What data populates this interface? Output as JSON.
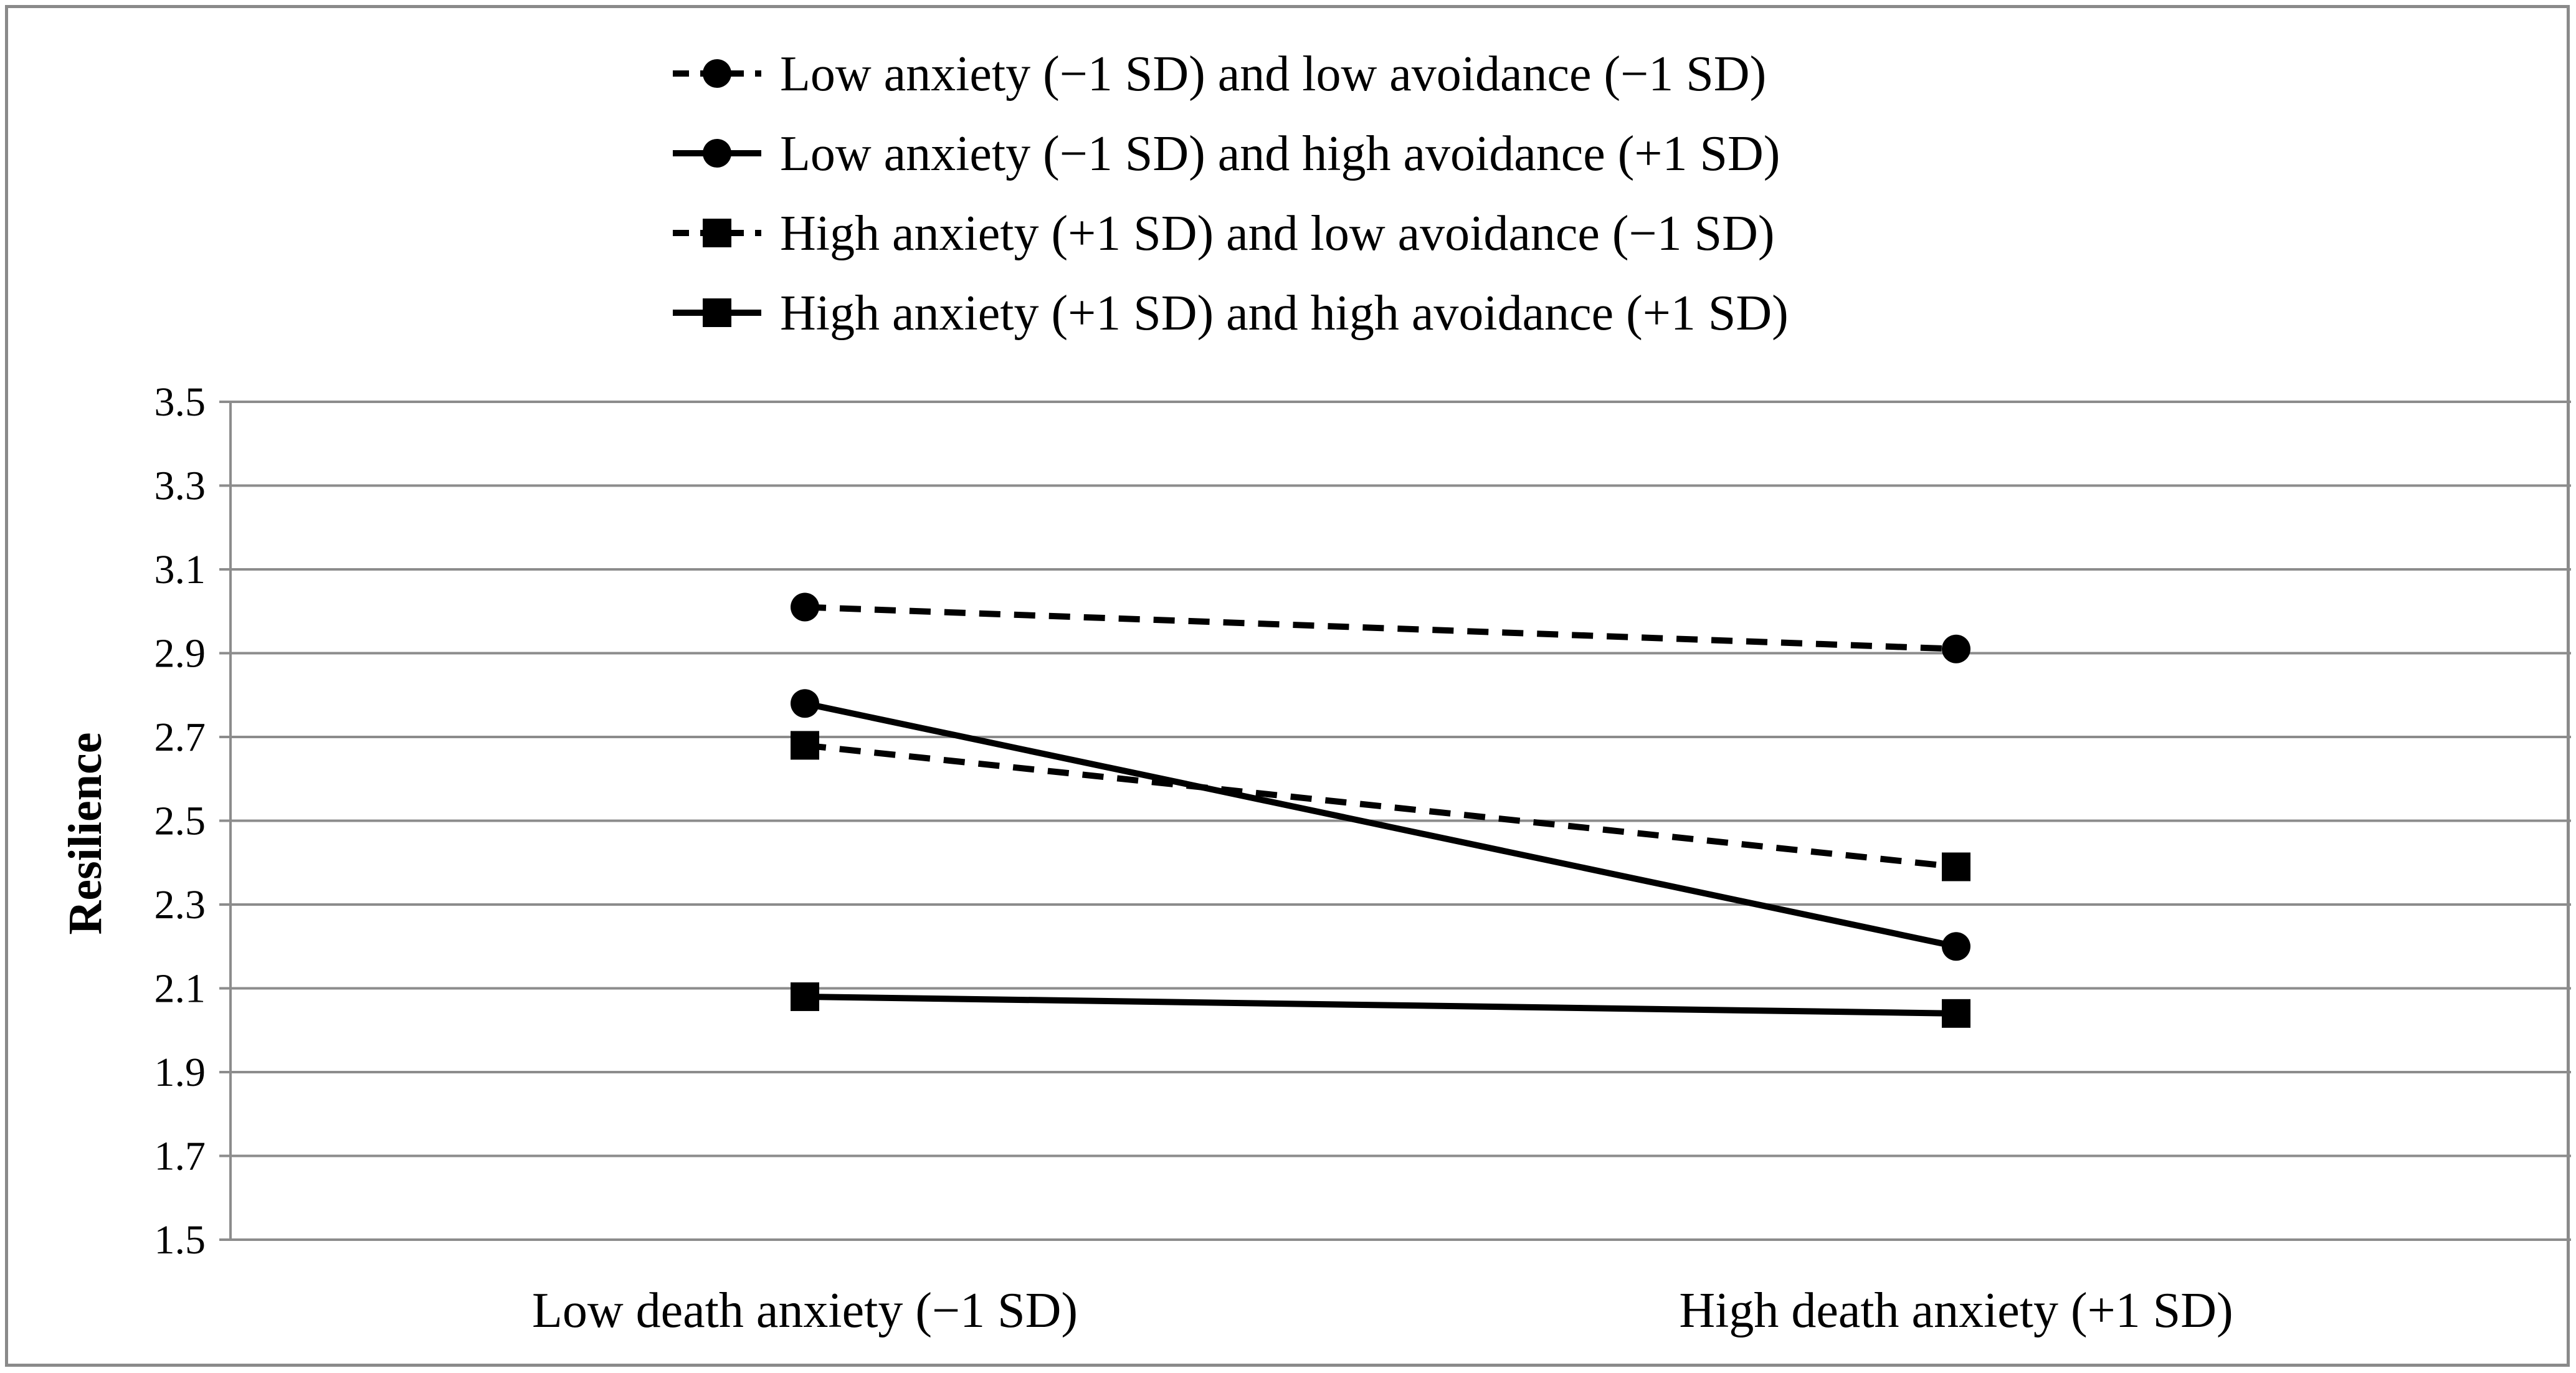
{
  "chart_data": {
    "type": "line",
    "title": "",
    "xlabel": "",
    "ylabel": "Resilience",
    "ylim": [
      1.5,
      3.5
    ],
    "yticks": [
      1.5,
      1.7,
      1.9,
      2.1,
      2.3,
      2.5,
      2.7,
      2.9,
      3.1,
      3.3,
      3.5
    ],
    "ytick_labels": [
      "1.5",
      "1.7",
      "1.9",
      "2.1",
      "2.3",
      "2.5",
      "2.7",
      "2.9",
      "3.1",
      "3.3",
      "3.5"
    ],
    "grid": true,
    "legend_position": "top",
    "categories": [
      "Low death anxiety (−1 SD)",
      "High death anxiety (+1 SD)"
    ],
    "series": [
      {
        "name": "Low anxiety (−1 SD) and low avoidance (−1 SD)",
        "values": [
          3.01,
          2.91
        ],
        "line_style": "dashed",
        "marker": "circle",
        "color": "#000000"
      },
      {
        "name": "Low anxiety (−1 SD) and high avoidance (+1 SD)",
        "values": [
          2.78,
          2.2
        ],
        "line_style": "solid",
        "marker": "circle",
        "color": "#000000"
      },
      {
        "name": "High anxiety (+1 SD) and low avoidance (−1 SD)",
        "values": [
          2.68,
          2.39
        ],
        "line_style": "dashed",
        "marker": "square",
        "color": "#000000"
      },
      {
        "name": "High anxiety (+1 SD) and high avoidance (+1 SD)",
        "values": [
          2.08,
          2.04
        ],
        "line_style": "solid",
        "marker": "square",
        "color": "#000000"
      }
    ],
    "colors": {
      "gridline": "#8c8c8c",
      "frame": "#8a8a8a",
      "series": "#000000"
    }
  }
}
